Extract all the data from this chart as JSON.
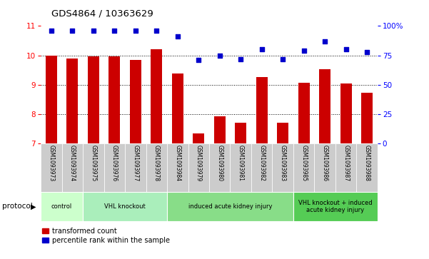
{
  "title": "GDS4864 / 10363629",
  "samples": [
    "GSM1093973",
    "GSM1093974",
    "GSM1093975",
    "GSM1093976",
    "GSM1093977",
    "GSM1093978",
    "GSM1093984",
    "GSM1093979",
    "GSM1093980",
    "GSM1093981",
    "GSM1093982",
    "GSM1093983",
    "GSM1093985",
    "GSM1093986",
    "GSM1093987",
    "GSM1093988"
  ],
  "bar_values": [
    10.0,
    9.9,
    9.97,
    9.97,
    9.85,
    10.2,
    9.38,
    7.35,
    7.93,
    7.72,
    9.27,
    7.72,
    9.08,
    9.53,
    9.05,
    8.73
  ],
  "dot_values": [
    96,
    96,
    96,
    96,
    96,
    96,
    91,
    71,
    75,
    72,
    80,
    72,
    79,
    87,
    80,
    78
  ],
  "bar_color": "#cc0000",
  "dot_color": "#0000cc",
  "ylim_left": [
    7,
    11
  ],
  "ylim_right": [
    0,
    100
  ],
  "yticks_left": [
    7,
    8,
    9,
    10,
    11
  ],
  "yticks_right": [
    0,
    25,
    50,
    75,
    100
  ],
  "groups": [
    {
      "label": "control",
      "start": 0,
      "end": 2
    },
    {
      "label": "VHL knockout",
      "start": 2,
      "end": 6
    },
    {
      "label": "induced acute kidney injury",
      "start": 6,
      "end": 12
    },
    {
      "label": "VHL knockout + induced\nacute kidney injury",
      "start": 12,
      "end": 16
    }
  ],
  "group_colors": [
    "#ccffcc",
    "#aaeebb",
    "#88dd88",
    "#55cc55"
  ],
  "legend1_label": "transformed count",
  "legend2_label": "percentile rank within the sample",
  "protocol_label": "protocol"
}
